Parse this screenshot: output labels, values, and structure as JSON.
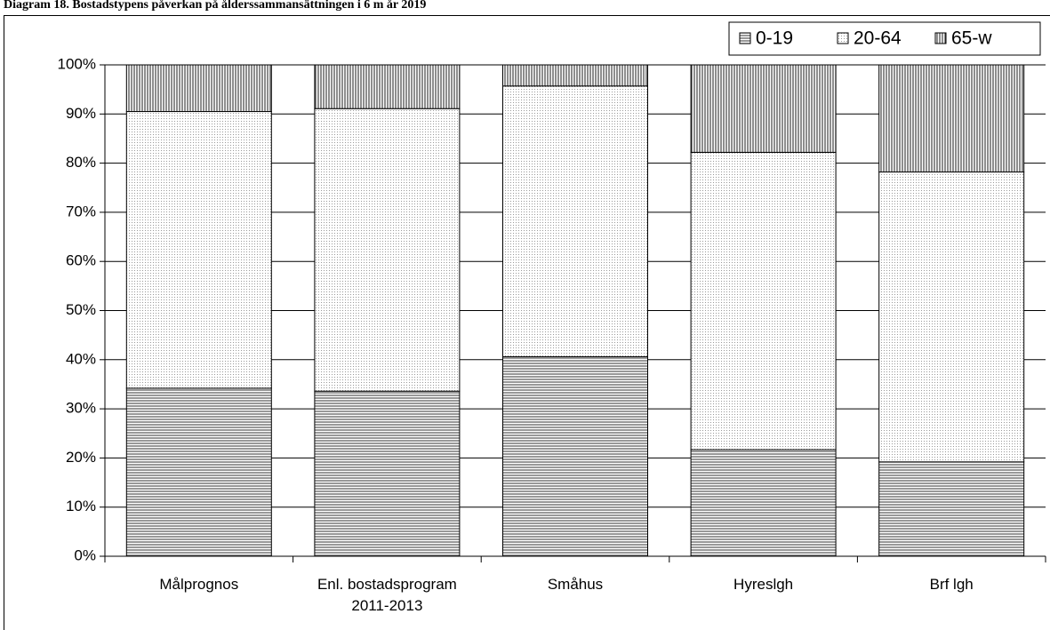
{
  "chart_data": {
    "type": "stacked_bar",
    "title": "Diagram 18. Bostadstypens påverkan på ålderssammansättningen i 6 m år 2019",
    "categories": [
      "Målprognos",
      "Enl. bostadsprogram 2011-2013",
      "Småhus",
      "Hyreslgh",
      "Brf lgh"
    ],
    "series": [
      {
        "name": "0-19",
        "color": "#555555",
        "pattern": "horizontal",
        "values": [
          34.2,
          33.6,
          40.6,
          21.7,
          19.2
        ]
      },
      {
        "name": "20-64",
        "color": "#9a9a9a",
        "pattern": "dots",
        "values": [
          56.3,
          57.5,
          55.1,
          60.5,
          59.0
        ]
      },
      {
        "name": "65-w",
        "color": "#444444",
        "pattern": "vertical",
        "values": [
          9.5,
          8.9,
          4.3,
          17.8,
          21.8
        ]
      }
    ],
    "ylim": [
      0,
      100
    ],
    "yticks": [
      {
        "value": 0,
        "label": "0%"
      },
      {
        "value": 10,
        "label": "10%"
      },
      {
        "value": 20,
        "label": "20%"
      },
      {
        "value": 30,
        "label": "30%"
      },
      {
        "value": 40,
        "label": "40%"
      },
      {
        "value": 50,
        "label": "50%"
      },
      {
        "value": 60,
        "label": "60%"
      },
      {
        "value": 70,
        "label": "70%"
      },
      {
        "value": 80,
        "label": "80%"
      },
      {
        "value": 90,
        "label": "90%"
      },
      {
        "value": 100,
        "label": "100%"
      }
    ],
    "grid": true,
    "legend": "upper right"
  }
}
